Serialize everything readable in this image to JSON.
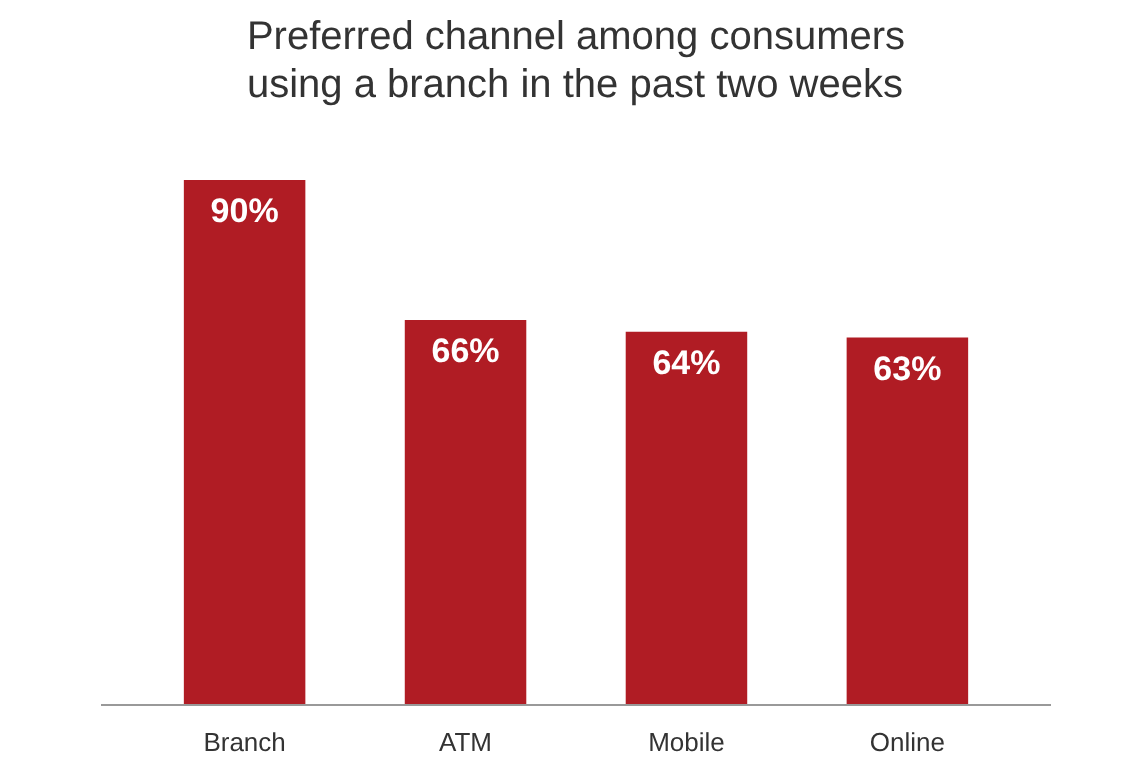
{
  "chart_data": {
    "type": "bar",
    "title": "Preferred channel among consumers using a branch in the past two weeks",
    "categories": [
      "Branch",
      "ATM",
      "Mobile",
      "Online"
    ],
    "values": [
      90,
      66,
      64,
      63
    ],
    "color": "#b01c24",
    "data_labels": true,
    "value_labels": [
      "90%",
      "66%",
      "64%",
      "63%"
    ],
    "tick_labels": "x",
    "grid": false
  }
}
